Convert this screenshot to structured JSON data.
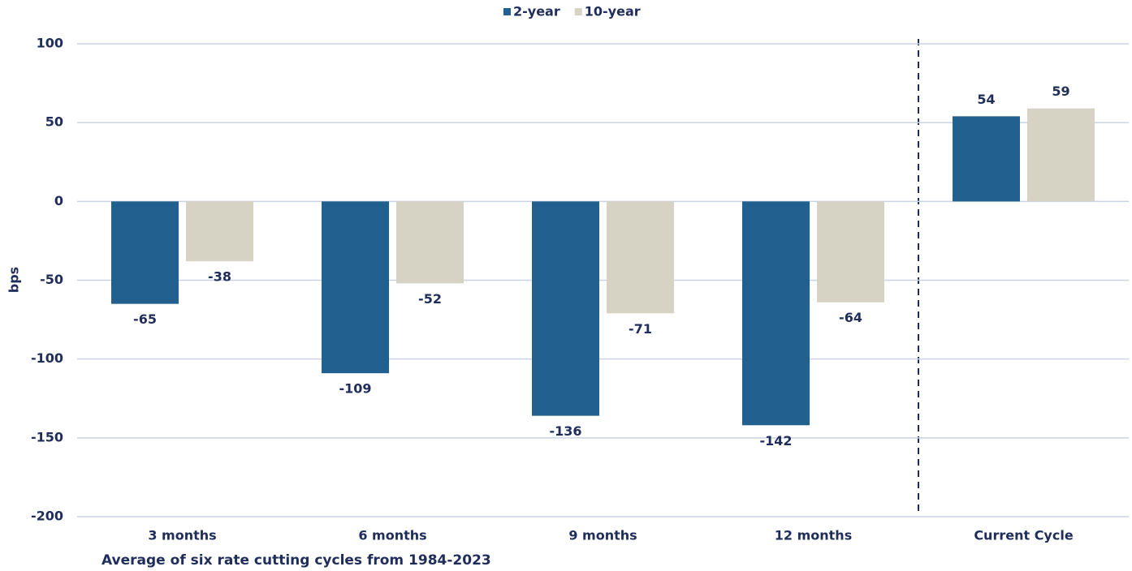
{
  "chart_data": {
    "type": "bar",
    "categories": [
      "3 months",
      "6 months",
      "9 months",
      "12 months",
      "Current Cycle"
    ],
    "series": [
      {
        "name": "2-year",
        "color": "#21608f",
        "values": [
          -65,
          -109,
          -136,
          -142,
          54
        ]
      },
      {
        "name": "10-year",
        "color": "#d6d2c4",
        "values": [
          -38,
          -52,
          -71,
          -64,
          59
        ]
      }
    ],
    "ylabel": "bps",
    "xlabel": "Average of six rate cutting cycles from 1984-2023",
    "ylim": [
      -200,
      100
    ],
    "yticks": [
      100,
      50,
      0,
      -50,
      -100,
      -150,
      -200
    ],
    "grid": true,
    "legend": "top"
  }
}
